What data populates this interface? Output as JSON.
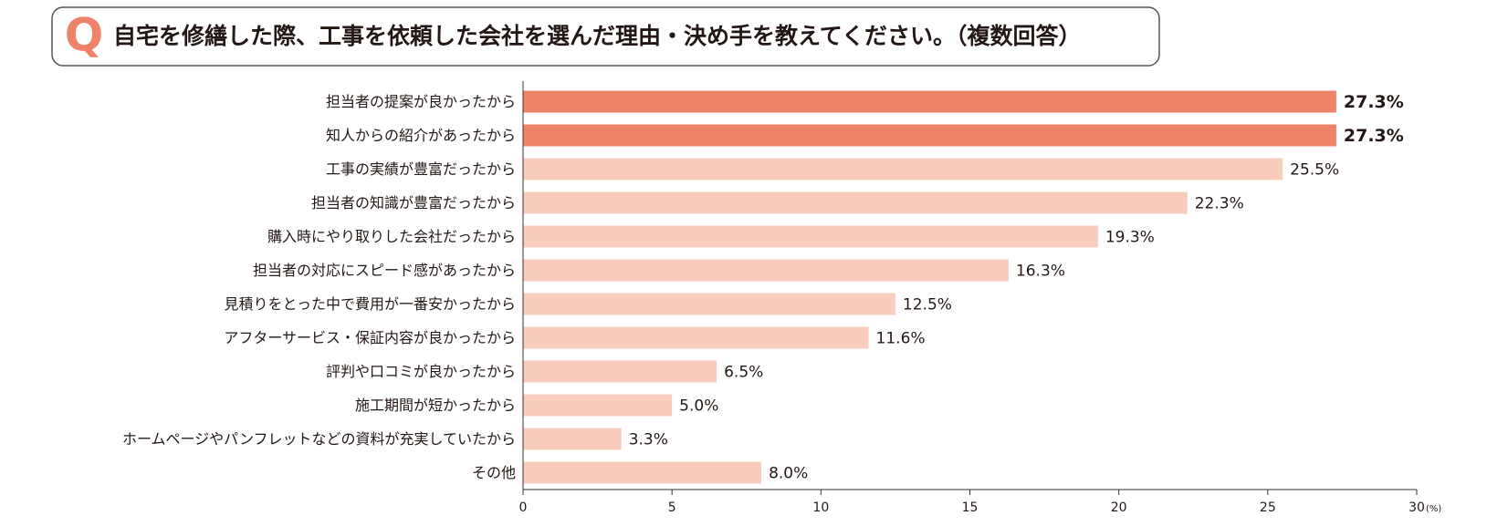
{
  "chart_data": {
    "type": "bar",
    "orientation": "horizontal",
    "question_mark": "Q",
    "title": "自宅を修繕した際、工事を依頼した会社を選んだ理由・決め手を教えてください。（複数回答）",
    "categories": [
      "担当者の提案が良かったから",
      "知人からの紹介があったから",
      "工事の実績が豊富だったから",
      "担当者の知識が豊富だったから",
      "購入時にやり取りした会社だったから",
      "担当者の対応にスピード感があったから",
      "見積りをとった中で費用が一番安かったから",
      "アフターサービス・保証内容が良かったから",
      "評判や口コミが良かったから",
      "施工期間が短かったから",
      "ホームページやパンフレットなどの資料が充実していたから",
      "その他"
    ],
    "values": [
      27.3,
      27.3,
      25.5,
      22.3,
      19.3,
      16.3,
      12.5,
      11.6,
      6.5,
      5.0,
      3.3,
      8.0
    ],
    "value_labels": [
      "27.3%",
      "27.3%",
      "25.5%",
      "22.3%",
      "19.3%",
      "16.3%",
      "12.5%",
      "11.6%",
      "6.5%",
      "5.0%",
      "3.3%",
      "8.0%"
    ],
    "color": "#f9cdbd",
    "colors": [
      "#ef836a",
      "#ef836a",
      "#f9cdbd",
      "#f9cdbd",
      "#f9cdbd",
      "#f9cdbd",
      "#f9cdbd",
      "#f9cdbd",
      "#f9cdbd",
      "#f9cdbd",
      "#f9cdbd",
      "#f9cdbd"
    ],
    "xlim": [
      0,
      30
    ],
    "xticks": [
      0,
      5,
      10,
      15,
      20,
      25,
      30
    ],
    "x_unit": "(%)"
  }
}
